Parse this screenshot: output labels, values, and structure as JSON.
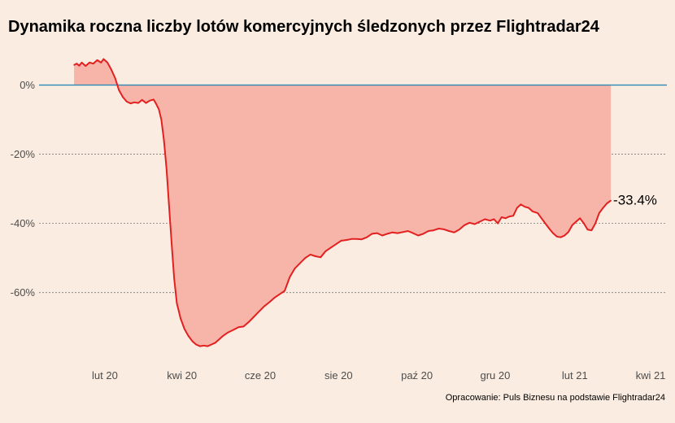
{
  "colors": {
    "background": "#faece0",
    "area_fill": "#f7b5aa",
    "line": "#e32020",
    "zero_line": "#2b87b5",
    "grid": "#7a7a7a"
  },
  "chart_data": {
    "type": "area",
    "title": "Dynamika roczna liczby lotów komercyjnych śledzonych przez Flightradar24",
    "caption": "Opracowanie: Puls Biznesu na podstawie Flightradar24",
    "xlabel": "",
    "ylabel": "",
    "x_range": [
      "2020-01-01",
      "2021-04-01"
    ],
    "x_ticks": [
      {
        "date": "2020-02-01",
        "label": "lut 20"
      },
      {
        "date": "2020-04-01",
        "label": "kwi 20"
      },
      {
        "date": "2020-06-01",
        "label": "cze 20"
      },
      {
        "date": "2020-08-01",
        "label": "sie 20"
      },
      {
        "date": "2020-10-01",
        "label": "paź 20"
      },
      {
        "date": "2020-12-01",
        "label": "gru 20"
      },
      {
        "date": "2021-02-01",
        "label": "lut 21"
      },
      {
        "date": "2021-04-01",
        "label": "kwi 21"
      }
    ],
    "ylim": [
      -77,
      10
    ],
    "y_ticks": [
      {
        "value": 0,
        "label": "0%"
      },
      {
        "value": -20,
        "label": "-20%"
      },
      {
        "value": -40,
        "label": "-40%"
      },
      {
        "value": -60,
        "label": "-60%"
      }
    ],
    "grid": "horizontal dashed",
    "end_label": "-33.4%",
    "series": [
      {
        "points": [
          [
            "2020-01-08",
            5.8
          ],
          [
            "2020-01-10",
            6.2
          ],
          [
            "2020-01-12",
            5.6
          ],
          [
            "2020-01-14",
            6.5
          ],
          [
            "2020-01-17",
            5.5
          ],
          [
            "2020-01-20",
            6.5
          ],
          [
            "2020-01-23",
            6.2
          ],
          [
            "2020-01-26",
            7.2
          ],
          [
            "2020-01-29",
            6.5
          ],
          [
            "2020-01-31",
            7.5
          ],
          [
            "2020-02-03",
            6.5
          ],
          [
            "2020-02-06",
            4.5
          ],
          [
            "2020-02-09",
            2.0
          ],
          [
            "2020-02-12",
            -1.5
          ],
          [
            "2020-02-15",
            -3.5
          ],
          [
            "2020-02-18",
            -4.8
          ],
          [
            "2020-02-21",
            -5.3
          ],
          [
            "2020-02-24",
            -5.0
          ],
          [
            "2020-02-27",
            -5.2
          ],
          [
            "2020-03-01",
            -4.3
          ],
          [
            "2020-03-04",
            -5.2
          ],
          [
            "2020-03-07",
            -4.5
          ],
          [
            "2020-03-10",
            -4.2
          ],
          [
            "2020-03-12",
            -5.5
          ],
          [
            "2020-03-14",
            -7.0
          ],
          [
            "2020-03-16",
            -10.0
          ],
          [
            "2020-03-18",
            -16.0
          ],
          [
            "2020-03-20",
            -24.0
          ],
          [
            "2020-03-22",
            -35.0
          ],
          [
            "2020-03-24",
            -46.0
          ],
          [
            "2020-03-26",
            -56.0
          ],
          [
            "2020-03-28",
            -63.0
          ],
          [
            "2020-03-31",
            -67.5
          ],
          [
            "2020-04-03",
            -70.5
          ],
          [
            "2020-04-06",
            -72.5
          ],
          [
            "2020-04-09",
            -74.0
          ],
          [
            "2020-04-12",
            -75.0
          ],
          [
            "2020-04-15",
            -75.5
          ],
          [
            "2020-04-18",
            -75.3
          ],
          [
            "2020-04-21",
            -75.5
          ],
          [
            "2020-04-24",
            -75.0
          ],
          [
            "2020-04-27",
            -74.5
          ],
          [
            "2020-04-30",
            -73.5
          ],
          [
            "2020-05-03",
            -72.5
          ],
          [
            "2020-05-07",
            -71.5
          ],
          [
            "2020-05-11",
            -70.8
          ],
          [
            "2020-05-15",
            -70.0
          ],
          [
            "2020-05-19",
            -69.8
          ],
          [
            "2020-05-23",
            -68.5
          ],
          [
            "2020-05-27",
            -67.0
          ],
          [
            "2020-05-31",
            -65.5
          ],
          [
            "2020-06-04",
            -64.0
          ],
          [
            "2020-06-08",
            -62.8
          ],
          [
            "2020-06-12",
            -61.5
          ],
          [
            "2020-06-16",
            -60.5
          ],
          [
            "2020-06-20",
            -59.5
          ],
          [
            "2020-06-24",
            -55.5
          ],
          [
            "2020-06-28",
            -53.0
          ],
          [
            "2020-07-02",
            -51.5
          ],
          [
            "2020-07-06",
            -50.0
          ],
          [
            "2020-07-10",
            -49.0
          ],
          [
            "2020-07-14",
            -49.5
          ],
          [
            "2020-07-18",
            -49.8
          ],
          [
            "2020-07-22",
            -48.0
          ],
          [
            "2020-07-26",
            -47.0
          ],
          [
            "2020-07-30",
            -46.0
          ],
          [
            "2020-08-03",
            -45.0
          ],
          [
            "2020-08-07",
            -44.8
          ],
          [
            "2020-08-11",
            -44.5
          ],
          [
            "2020-08-15",
            -44.5
          ],
          [
            "2020-08-19",
            -44.6
          ],
          [
            "2020-08-23",
            -44.0
          ],
          [
            "2020-08-27",
            -43.0
          ],
          [
            "2020-08-31",
            -42.8
          ],
          [
            "2020-09-04",
            -43.5
          ],
          [
            "2020-09-08",
            -43.0
          ],
          [
            "2020-09-12",
            -42.6
          ],
          [
            "2020-09-16",
            -42.8
          ],
          [
            "2020-09-20",
            -42.5
          ],
          [
            "2020-09-24",
            -42.2
          ],
          [
            "2020-09-28",
            -42.8
          ],
          [
            "2020-10-02",
            -43.5
          ],
          [
            "2020-10-06",
            -43.0
          ],
          [
            "2020-10-10",
            -42.2
          ],
          [
            "2020-10-14",
            -42.0
          ],
          [
            "2020-10-18",
            -41.5
          ],
          [
            "2020-10-22",
            -41.7
          ],
          [
            "2020-10-26",
            -42.2
          ],
          [
            "2020-10-30",
            -42.6
          ],
          [
            "2020-11-03",
            -41.8
          ],
          [
            "2020-11-07",
            -40.5
          ],
          [
            "2020-11-11",
            -39.8
          ],
          [
            "2020-11-15",
            -40.2
          ],
          [
            "2020-11-19",
            -39.5
          ],
          [
            "2020-11-23",
            -38.8
          ],
          [
            "2020-11-27",
            -39.2
          ],
          [
            "2020-11-30",
            -38.8
          ],
          [
            "2020-12-03",
            -40.0
          ],
          [
            "2020-12-06",
            -38.2
          ],
          [
            "2020-12-09",
            -38.5
          ],
          [
            "2020-12-12",
            -38.0
          ],
          [
            "2020-12-15",
            -37.8
          ],
          [
            "2020-12-18",
            -35.5
          ],
          [
            "2020-12-21",
            -34.5
          ],
          [
            "2020-12-24",
            -35.2
          ],
          [
            "2020-12-27",
            -35.5
          ],
          [
            "2020-12-30",
            -36.5
          ],
          [
            "2021-01-03",
            -37.0
          ],
          [
            "2021-01-06",
            -38.5
          ],
          [
            "2021-01-09",
            -40.0
          ],
          [
            "2021-01-12",
            -41.5
          ],
          [
            "2021-01-15",
            -42.8
          ],
          [
            "2021-01-18",
            -43.8
          ],
          [
            "2021-01-21",
            -44.0
          ],
          [
            "2021-01-24",
            -43.5
          ],
          [
            "2021-01-27",
            -42.5
          ],
          [
            "2021-01-30",
            -40.5
          ],
          [
            "2021-02-02",
            -39.5
          ],
          [
            "2021-02-05",
            -38.5
          ],
          [
            "2021-02-08",
            -40.0
          ],
          [
            "2021-02-11",
            -41.8
          ],
          [
            "2021-02-14",
            -42.0
          ],
          [
            "2021-02-17",
            -40.0
          ],
          [
            "2021-02-20",
            -37.0
          ],
          [
            "2021-02-23",
            -35.5
          ],
          [
            "2021-02-26",
            -34.2
          ],
          [
            "2021-03-01",
            -33.4
          ]
        ]
      }
    ]
  }
}
